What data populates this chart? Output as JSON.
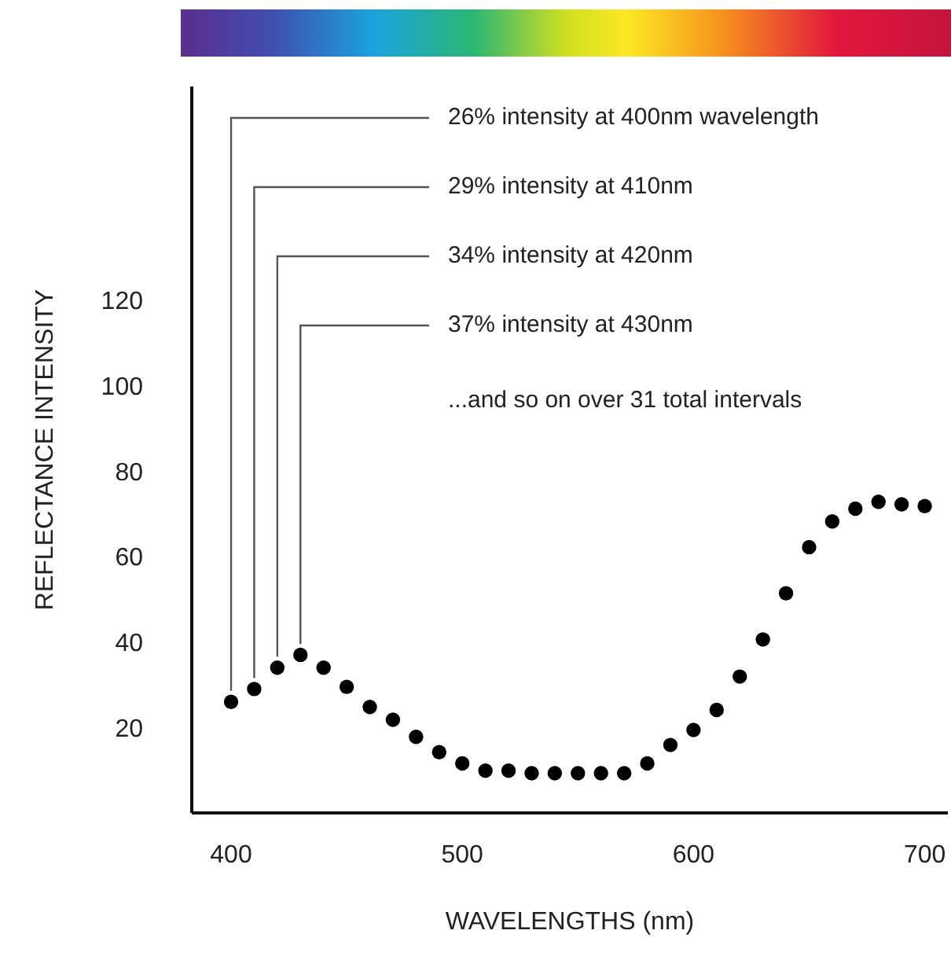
{
  "chart_data": {
    "type": "scatter",
    "xlabel": "WAVELENGTHS  (nm)",
    "ylabel": "REFLECTANCE INTENSITY",
    "x": [
      400,
      410,
      420,
      430,
      440,
      450,
      460,
      470,
      480,
      490,
      500,
      510,
      520,
      530,
      540,
      550,
      560,
      570,
      580,
      590,
      600,
      610,
      620,
      630,
      640,
      650,
      660,
      670,
      680,
      690,
      700
    ],
    "series": [
      {
        "color": "#000000",
        "values": [
          26,
          29,
          34,
          37,
          34,
          29.5,
          24.8,
          21.8,
          17.8,
          14.2,
          11.6,
          9.9,
          9.9,
          9.3,
          9.3,
          9.3,
          9.3,
          9.3,
          11.6,
          15.9,
          19.4,
          24.1,
          31.9,
          40.6,
          51.4,
          62.2,
          68.2,
          71.2,
          72.8,
          72.2,
          71.8
        ]
      }
    ],
    "xlim": [
      383,
      710
    ],
    "xticks": [
      400,
      500,
      600,
      700
    ],
    "ylim": [
      0,
      170
    ],
    "yticks": [
      20,
      40,
      60,
      80,
      100,
      120
    ],
    "marker": "circle",
    "annotations": [
      {
        "text": "26% intensity at 400nm wavelength",
        "x": 400,
        "y": 26
      },
      {
        "text": "29% intensity at 410nm",
        "x": 410,
        "y": 29
      },
      {
        "text": "34% intensity at 420nm",
        "x": 420,
        "y": 34
      },
      {
        "text": "37% intensity at 430nm",
        "x": 430,
        "y": 37
      },
      "...and so on over 31 total intervals"
    ]
  }
}
